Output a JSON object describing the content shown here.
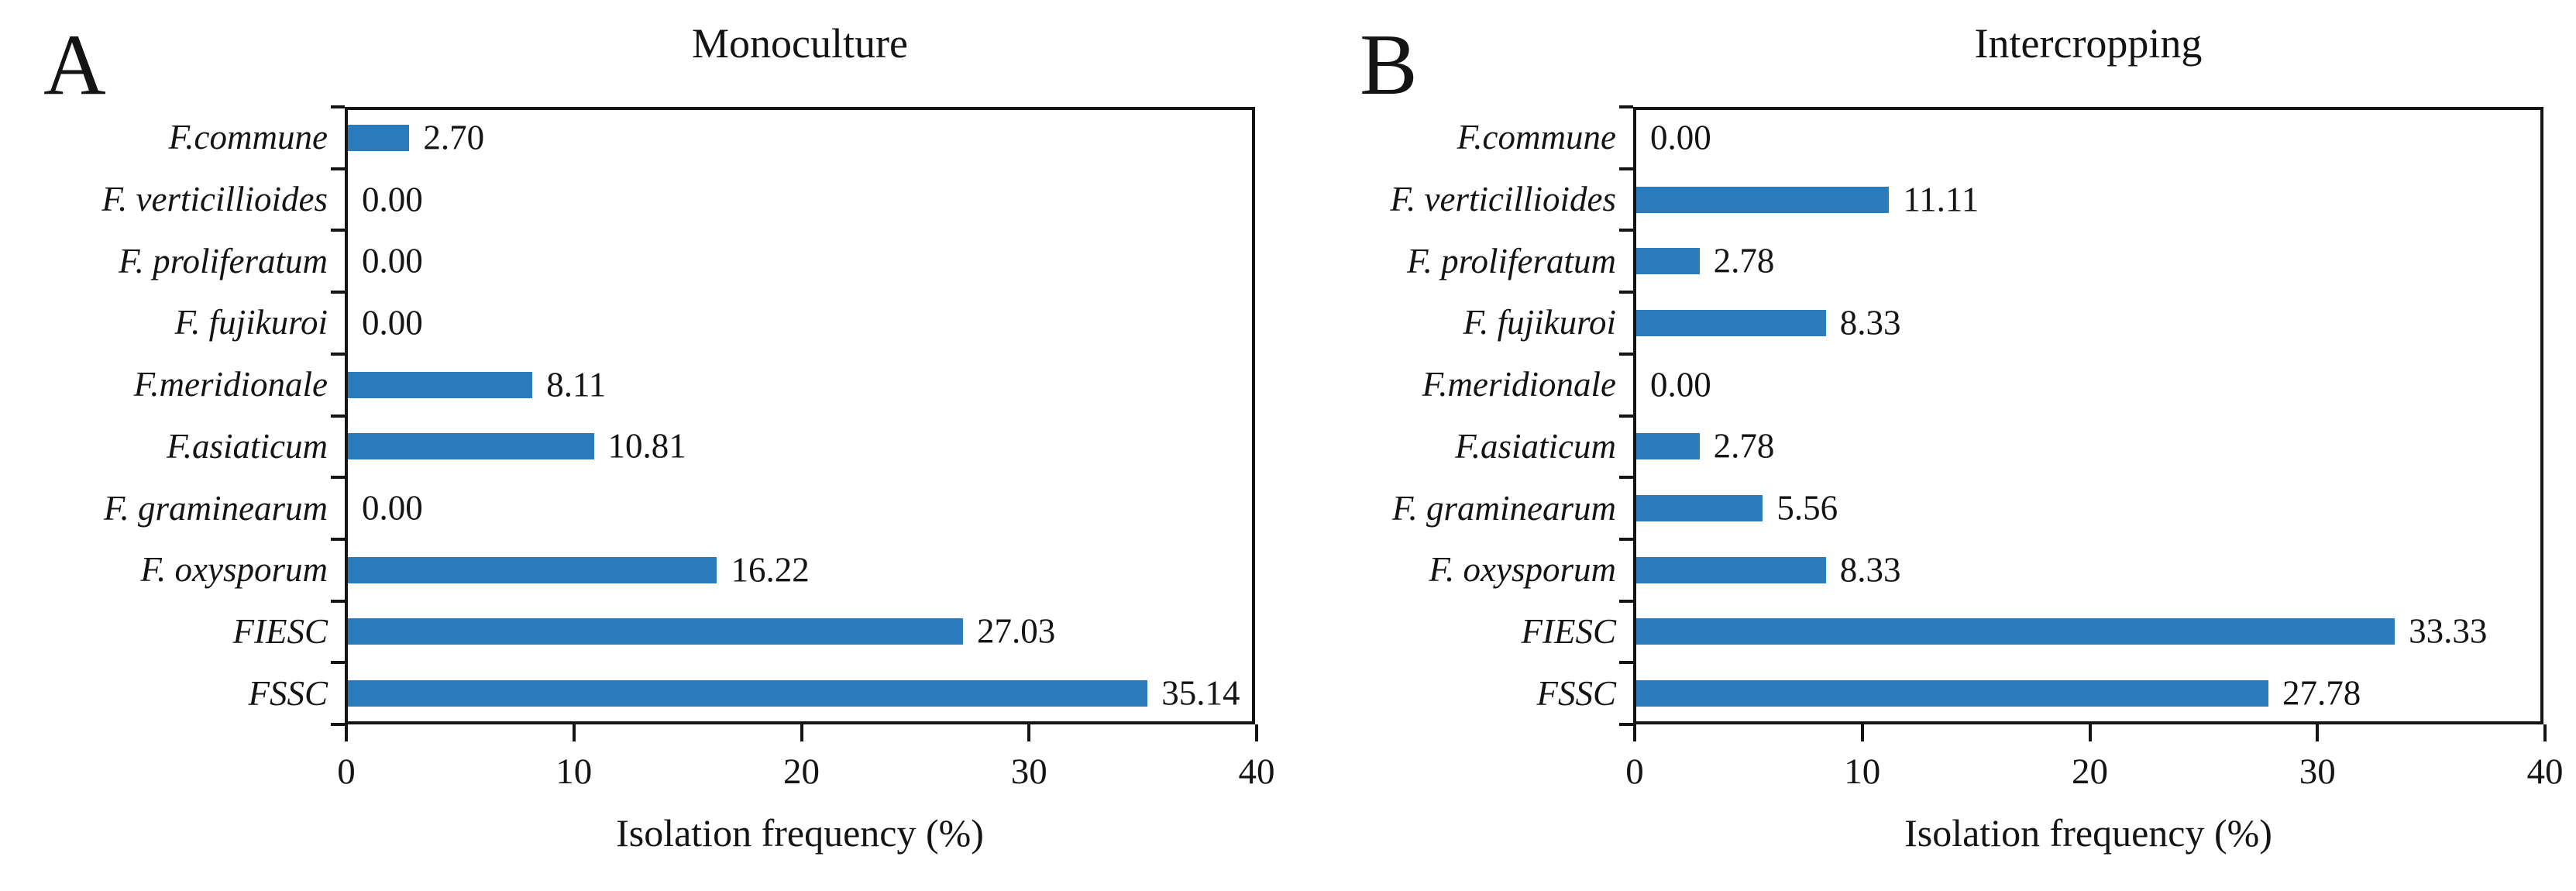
{
  "figure": {
    "bar_color": "#2b7cbd",
    "axis_color": "#141414",
    "background_color": "#ffffff"
  },
  "chart_data": [
    {
      "type": "bar",
      "orientation": "horizontal",
      "panel_letter": "A",
      "title": "Monoculture",
      "categories": [
        "F.commune",
        "F. verticillioides",
        "F. proliferatum",
        "F. fujikuroi",
        "F.meridionale",
        "F.asiaticum",
        "F. graminearum",
        "F. oxysporum",
        "FIESC",
        "FSSC"
      ],
      "values": [
        2.7,
        0.0,
        0.0,
        0.0,
        8.11,
        10.81,
        0.0,
        16.22,
        27.03,
        35.14
      ],
      "value_labels": [
        "2.70",
        "0.00",
        "0.00",
        "0.00",
        "8.11",
        "10.81",
        "0.00",
        "16.22",
        "27.03",
        "35.14"
      ],
      "xlabel": "Isolation frequency (%)",
      "xlim": [
        0,
        40
      ],
      "xticks": [
        0,
        10,
        20,
        30,
        40
      ],
      "grid": false,
      "legend": false
    },
    {
      "type": "bar",
      "orientation": "horizontal",
      "panel_letter": "B",
      "title": "Intercropping",
      "categories": [
        "F.commune",
        "F. verticillioides",
        "F. proliferatum",
        "F. fujikuroi",
        "F.meridionale",
        "F.asiaticum",
        "F. graminearum",
        "F. oxysporum",
        "FIESC",
        "FSSC"
      ],
      "values": [
        0.0,
        11.11,
        2.78,
        8.33,
        0.0,
        2.78,
        5.56,
        8.33,
        33.33,
        27.78
      ],
      "value_labels": [
        "0.00",
        "11.11",
        "2.78",
        "8.33",
        "0.00",
        "2.78",
        "5.56",
        "8.33",
        "33.33",
        "27.78"
      ],
      "xlabel": "Isolation frequency (%)",
      "xlim": [
        0,
        40
      ],
      "xticks": [
        0,
        10,
        20,
        30,
        40
      ],
      "grid": false,
      "legend": false
    }
  ]
}
